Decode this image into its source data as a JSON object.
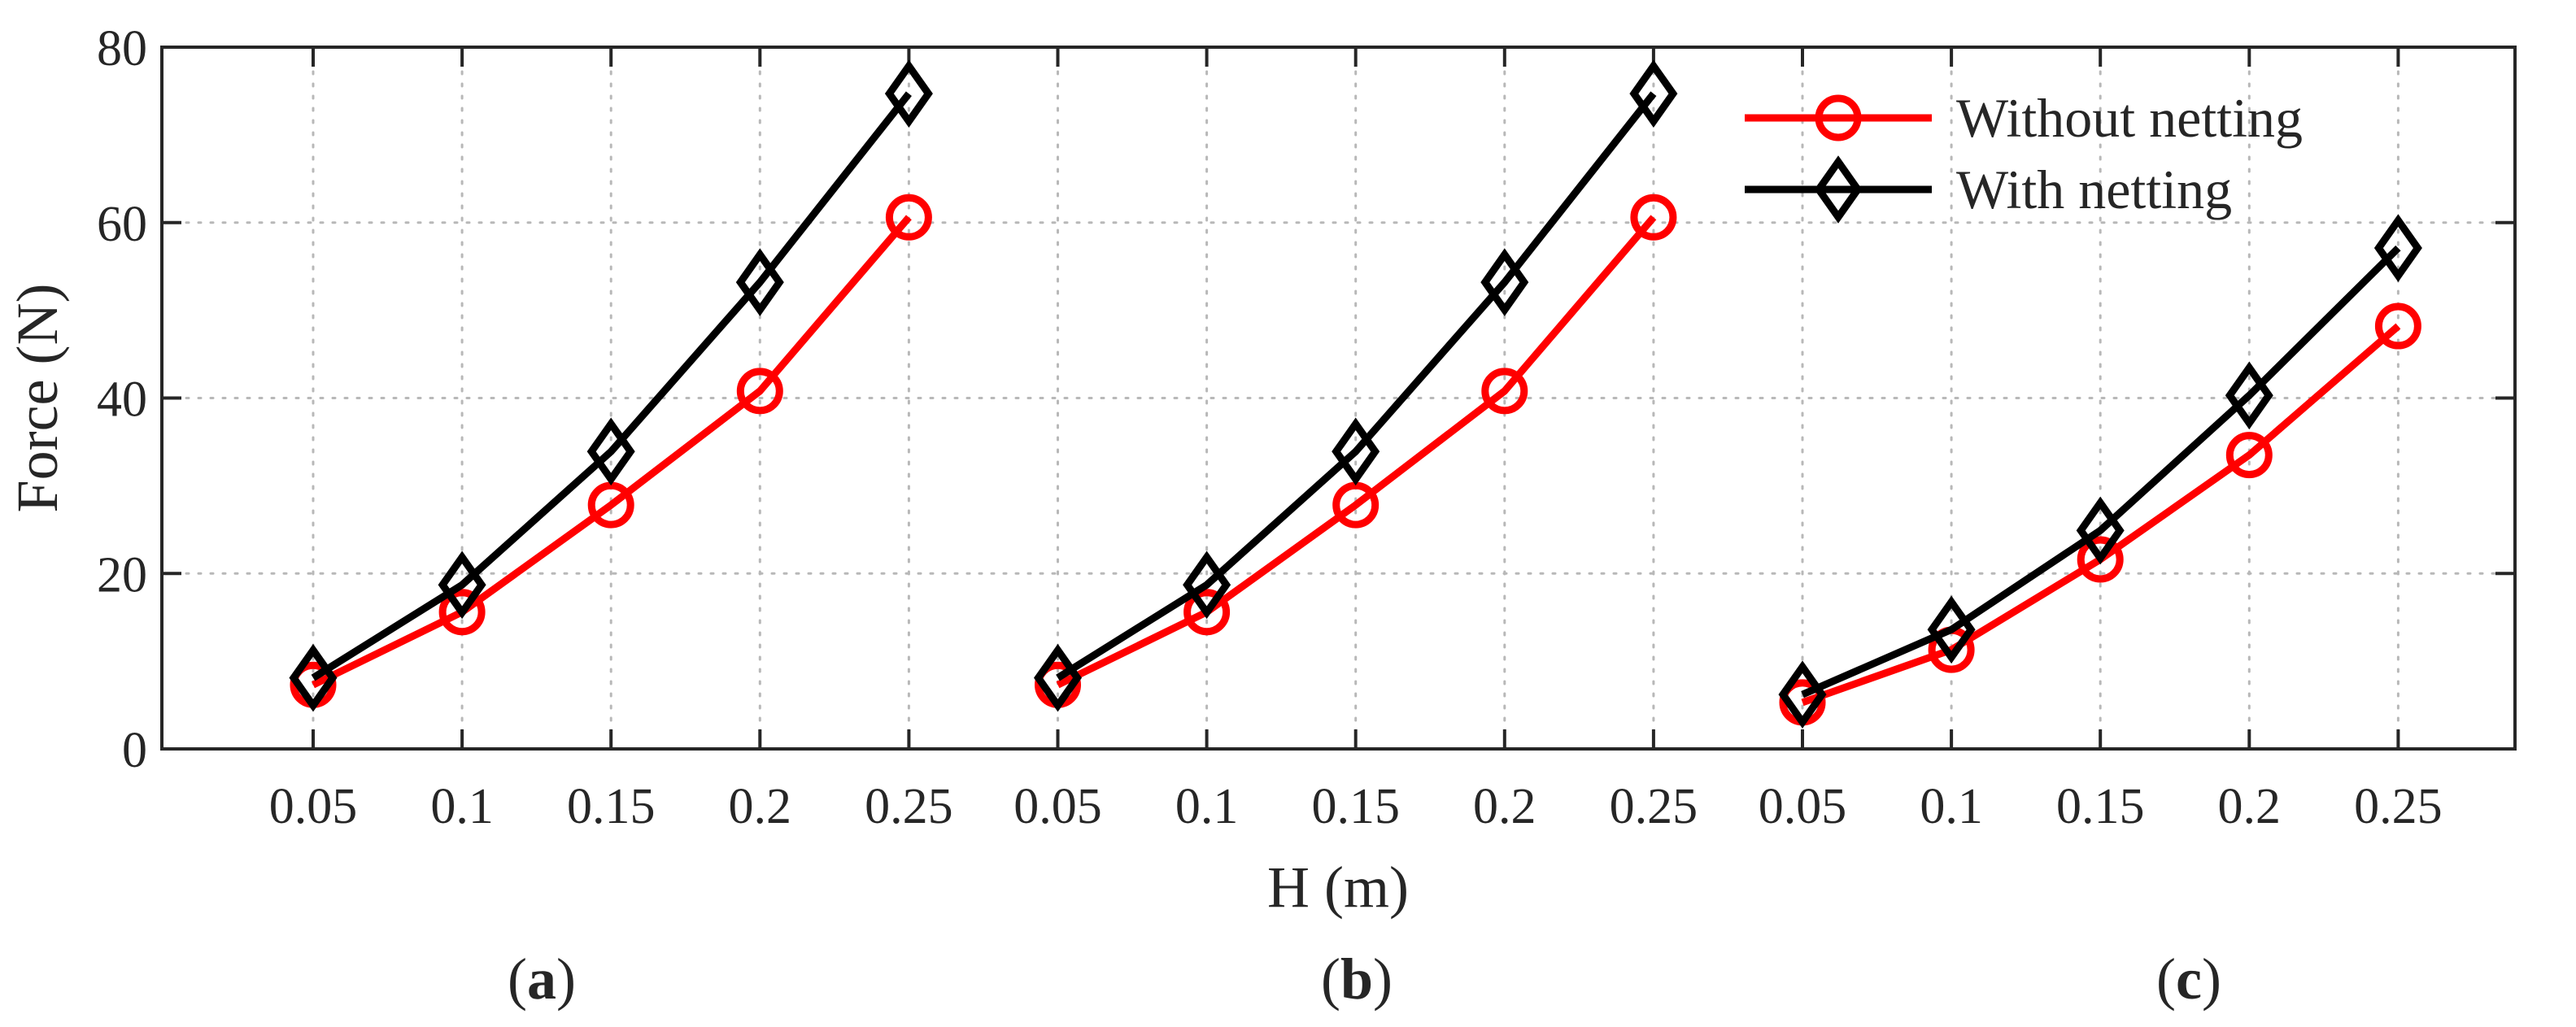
{
  "chart_data": {
    "type": "line",
    "xlabel": "H (m)",
    "ylabel": "Force (N)",
    "ylim": [
      0,
      80
    ],
    "yticks": [
      0,
      20,
      40,
      60,
      80
    ],
    "grid": true,
    "legend_position": "top-right",
    "legend": [
      {
        "name": "Without netting",
        "color": "#ff0000",
        "marker": "circle"
      },
      {
        "name": "With netting",
        "color": "#000000",
        "marker": "diamond"
      }
    ],
    "panels": [
      {
        "label": "a",
        "x": [
          "0.05",
          "0.1",
          "0.15",
          "0.2",
          "0.25"
        ],
        "series": [
          {
            "name": "Without netting",
            "values": [
              7.3,
              15.6,
              27.8,
              40.8,
              60.6
            ]
          },
          {
            "name": "With netting",
            "values": [
              8.1,
              18.7,
              33.9,
              53.2,
              74.7
            ]
          }
        ]
      },
      {
        "label": "b",
        "x": [
          "0.05",
          "0.1",
          "0.15",
          "0.2",
          "0.25"
        ],
        "series": [
          {
            "name": "Without netting",
            "values": [
              7.3,
              15.6,
              27.8,
              40.8,
              60.6
            ]
          },
          {
            "name": "With netting",
            "values": [
              8.1,
              18.7,
              33.9,
              53.2,
              74.7
            ]
          }
        ]
      },
      {
        "label": "c",
        "x": [
          "0.05",
          "0.1",
          "0.15",
          "0.2",
          "0.25"
        ],
        "series": [
          {
            "name": "Without netting",
            "values": [
              5.3,
              11.3,
              21.6,
              33.5,
              48.2
            ]
          },
          {
            "name": "With netting",
            "values": [
              6.2,
              13.6,
              24.9,
              40.3,
              57.1
            ]
          }
        ]
      }
    ]
  }
}
